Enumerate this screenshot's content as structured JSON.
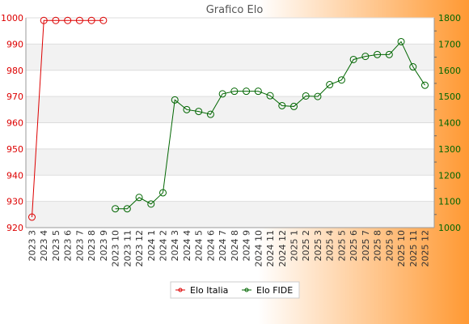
{
  "chart_data": {
    "type": "line",
    "title": "Grafico Elo",
    "categories": [
      "2023 3",
      "2023 4",
      "2023 5",
      "2023 6",
      "2023 7",
      "2023 8",
      "2023 9",
      "2023 10",
      "2023 11",
      "2023 12",
      "2024 1",
      "2024 2",
      "2024 3",
      "2024 4",
      "2024 5",
      "2024 6",
      "2024 7",
      "2024 8",
      "2024 9",
      "2024 10",
      "2024 11",
      "2024 12",
      "2025 1",
      "2025 2",
      "2025 3",
      "2025 4",
      "2025 5",
      "2025 6",
      "2025 7",
      "2025 8",
      "2025 9",
      "2025 10",
      "2025 11",
      "2025 12"
    ],
    "y_left": {
      "ylim": [
        920,
        1000
      ],
      "ticks": [
        920,
        930,
        940,
        950,
        960,
        970,
        980,
        990,
        1000
      ],
      "color": "#dd0000"
    },
    "y_right": {
      "ylim": [
        1000,
        1800
      ],
      "ticks": [
        1000,
        1100,
        1200,
        1300,
        1400,
        1500,
        1600,
        1700,
        1800
      ],
      "color": "#006600"
    },
    "grid": true,
    "legend_position": "bottom",
    "background_colors": {
      "plot_band_light": "#ffffff",
      "plot_band_dark": "#f2f2f2",
      "outer_left": "#ffffff",
      "outer_right": "#ff9933"
    },
    "series": [
      {
        "name": "Elo Italia",
        "axis": "left",
        "color": "#dd0000",
        "values": [
          924,
          999,
          999,
          999,
          999,
          999,
          999,
          null,
          null,
          null,
          null,
          null,
          null,
          null,
          null,
          null,
          null,
          null,
          null,
          null,
          null,
          null,
          null,
          null,
          null,
          null,
          null,
          null,
          null,
          null,
          null,
          null,
          null,
          null
        ]
      },
      {
        "name": "Elo FIDE",
        "axis": "right",
        "color": "#006600",
        "values": [
          null,
          null,
          null,
          null,
          null,
          null,
          null,
          1072,
          1072,
          1115,
          1090,
          1133,
          1487,
          1450,
          1443,
          1432,
          1510,
          1520,
          1520,
          1520,
          1503,
          1465,
          1462,
          1502,
          1500,
          1545,
          1563,
          1641,
          1653,
          1660,
          1660,
          1709,
          1613,
          1543
        ]
      }
    ]
  }
}
